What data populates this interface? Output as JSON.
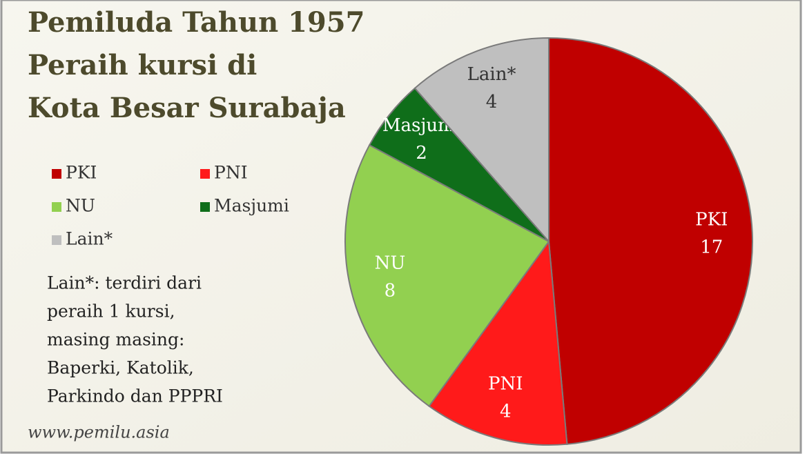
{
  "chart_data": {
    "type": "pie",
    "title": [
      "Pemiluda Tahun 1957",
      "Peraih kursi di",
      "Kota Besar Surabaja"
    ],
    "categories": [
      "PKI",
      "PNI",
      "NU",
      "Masjumi",
      "Lain*"
    ],
    "values": [
      17,
      4,
      8,
      2,
      4
    ],
    "colors": [
      "#c00000",
      "#ff1a1a",
      "#92d050",
      "#0f6e1a",
      "#bfbfbf"
    ],
    "annotation": [
      "Lain*: terdiri dari",
      "peraih 1 kursi,",
      "masing masing:",
      "Baperki, Katolik,",
      "Parkindo dan PPPRI"
    ],
    "source": "www.pemilu.asia"
  }
}
